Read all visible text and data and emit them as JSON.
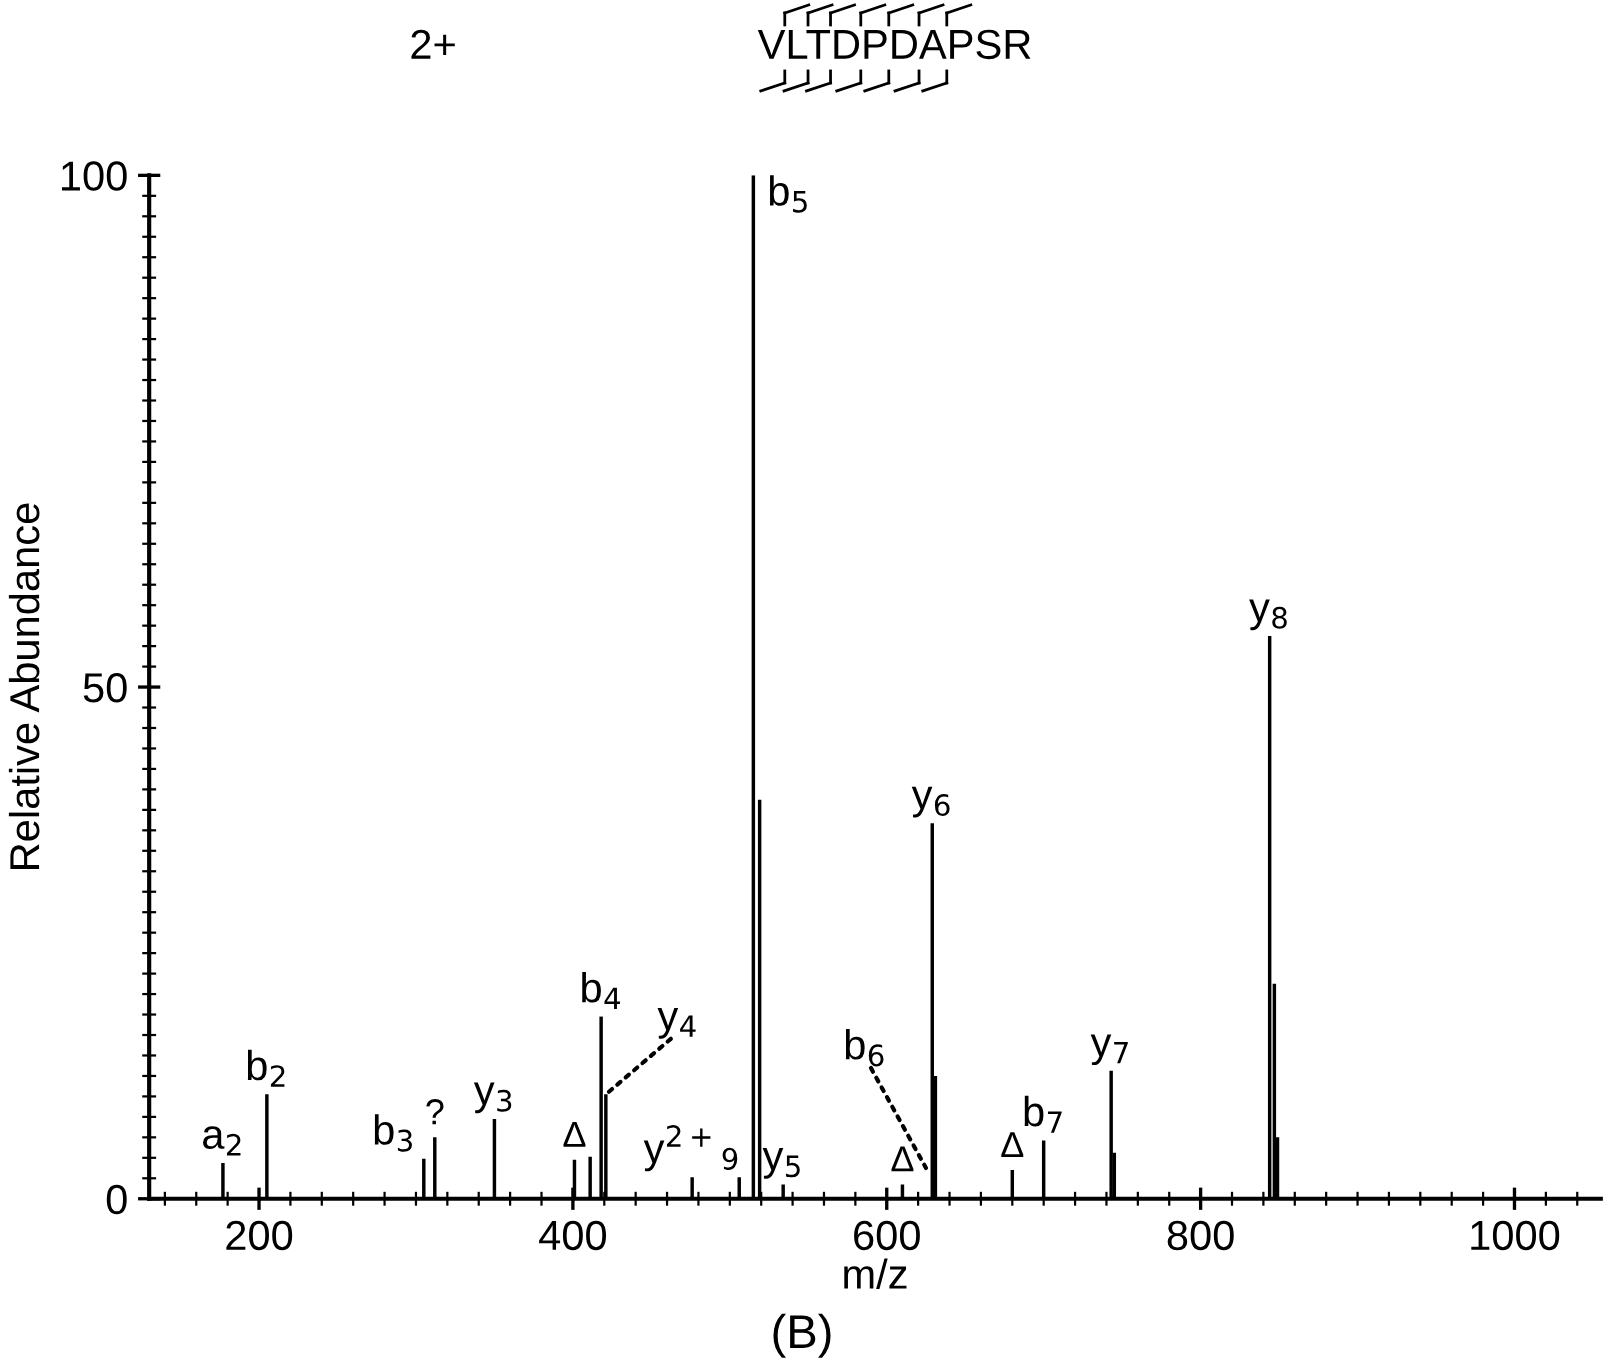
{
  "chart_data": {
    "type": "bar",
    "x": [
      177,
      205,
      305,
      312,
      350,
      401,
      411,
      418,
      421,
      476,
      506,
      515,
      519,
      534,
      610,
      629,
      631,
      680,
      700,
      743,
      745,
      844,
      847,
      849
    ],
    "values": [
      3.5,
      10.2,
      3.9,
      6,
      7.8,
      3.8,
      4.1,
      17.8,
      10.2,
      2.1,
      2.1,
      100,
      39,
      1.4,
      1.4,
      36.7,
      12,
      2.8,
      5.7,
      12.5,
      4.5,
      55,
      21,
      6
    ],
    "color": "#000000",
    "xlim": [
      130,
      1055
    ],
    "xticks": [
      200,
      400,
      600,
      800,
      1000
    ],
    "ylim": [
      0,
      100
    ],
    "yticks": [
      0,
      50,
      100
    ],
    "xlabel": "m/z",
    "ylabel": "Relative Abundance",
    "grid": false,
    "legend": false,
    "annotations": [
      {
        "text": "a$_{2}$",
        "x": 177,
        "y": 3.5
      },
      {
        "text": "b$_{2}$",
        "x": 205,
        "y": 10.2
      },
      {
        "text": "b$_{3}$",
        "x": 305,
        "y": 3.9
      },
      {
        "text": "?",
        "x": 312,
        "y": 6
      },
      {
        "text": "y$_{3}$",
        "x": 350,
        "y": 7.8
      },
      {
        "text": "Δ",
        "x": 401,
        "y": 3.8
      },
      {
        "text": "b$_{4}$",
        "x": 418,
        "y": 17.8
      },
      {
        "text": "y$_{4}$",
        "x": 421,
        "y": 10.2
      },
      {
        "text": "y$^{2+}$$_{9}$",
        "x": 476,
        "y": 2.1
      },
      {
        "text": "b$_{5}$",
        "x": 515,
        "y": 100
      },
      {
        "text": "y$_{5}$",
        "x": 534,
        "y": 1.4
      },
      {
        "text": "Δ",
        "x": 610,
        "y": 1.4
      },
      {
        "text": "b$_{6}$",
        "x": 625,
        "y": 3
      },
      {
        "text": "y$_{6}$",
        "x": 629,
        "y": 36.7
      },
      {
        "text": "Δ",
        "x": 680,
        "y": 2.8
      },
      {
        "text": "b$_{7}$",
        "x": 700,
        "y": 5.7
      },
      {
        "text": "y$_{7}$",
        "x": 743,
        "y": 12.5
      },
      {
        "text": "y$_{8}$",
        "x": 844,
        "y": 55
      },
      "2+",
      "VLTDPDAPSR",
      "(B)"
    ]
  }
}
